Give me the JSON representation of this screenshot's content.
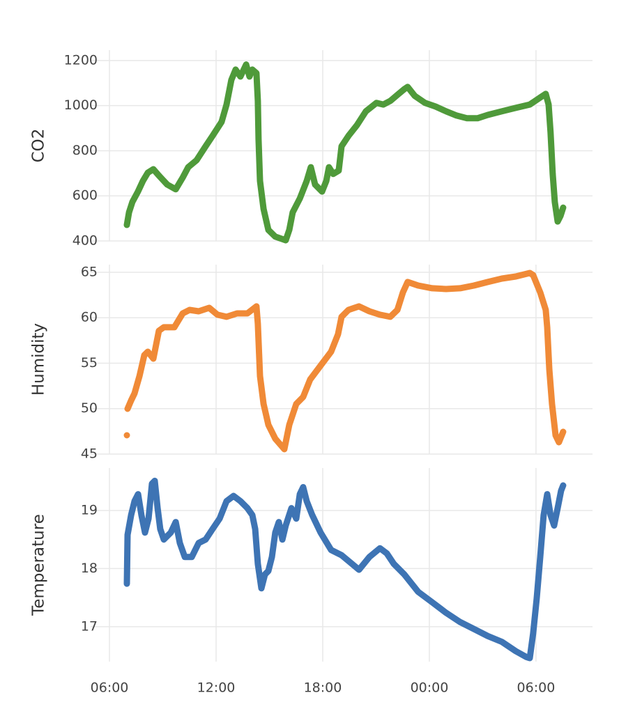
{
  "chart_data": [
    {
      "type": "line",
      "ylabel": "CO2",
      "color": "#4f9a3a",
      "xlim": [
        4.94,
        33.18
      ],
      "ylim": [
        400,
        1246
      ],
      "yticks": [
        400,
        600,
        800,
        1000,
        1200
      ],
      "grid": true,
      "x": [
        6.98,
        7.1,
        7.29,
        7.61,
        7.88,
        8.16,
        8.47,
        8.78,
        9.25,
        9.73,
        10.12,
        10.43,
        10.9,
        11.41,
        11.8,
        12.31,
        12.59,
        12.86,
        13.1,
        13.37,
        13.69,
        13.88,
        14.04,
        14.27,
        14.35,
        14.39,
        14.47,
        14.67,
        14.94,
        15.33,
        15.92,
        16.12,
        16.31,
        16.71,
        17.1,
        17.33,
        17.57,
        17.96,
        18.2,
        18.35,
        18.59,
        18.9,
        19.06,
        19.45,
        19.92,
        20.43,
        21.02,
        21.41,
        21.8,
        22.27,
        22.59,
        22.78,
        23.18,
        23.76,
        24.35,
        24.94,
        25.53,
        26.12,
        26.71,
        27.29,
        28.08,
        28.86,
        29.65,
        30.24,
        30.55,
        30.71,
        30.82,
        30.94,
        31.06,
        31.22,
        31.38,
        31.53
      ],
      "values": [
        471,
        527,
        573,
        620,
        666,
        703,
        718,
        690,
        650,
        629,
        681,
        727,
        758,
        820,
        866,
        928,
        1005,
        1114,
        1160,
        1129,
        1182,
        1129,
        1160,
        1144,
        1021,
        851,
        666,
        542,
        449,
        419,
        403,
        449,
        527,
        588,
        666,
        727,
        650,
        619,
        666,
        727,
        697,
        712,
        820,
        866,
        913,
        975,
        1012,
        1005,
        1021,
        1052,
        1073,
        1083,
        1043,
        1012,
        996,
        975,
        956,
        944,
        944,
        959,
        975,
        990,
        1005,
        1036,
        1052,
        1005,
        882,
        697,
        573,
        486,
        511,
        548
      ]
    },
    {
      "type": "line",
      "ylabel": "Humidity",
      "color": "#f08a37",
      "xlim": [
        4.94,
        33.18
      ],
      "ylim": [
        45,
        65.84
      ],
      "yticks": [
        45,
        50,
        55,
        60,
        65
      ],
      "grid": true,
      "x": [
        6.98,
        7.0,
        7.02,
        7.22,
        7.41,
        7.69,
        7.96,
        8.16,
        8.47,
        8.78,
        9.06,
        9.65,
        10.12,
        10.51,
        11.02,
        11.61,
        12.08,
        12.59,
        13.18,
        13.76,
        14.27,
        14.35,
        14.47,
        14.67,
        14.94,
        15.33,
        15.84,
        16.12,
        16.51,
        16.9,
        17.29,
        17.88,
        18.47,
        18.86,
        19.06,
        19.45,
        20.04,
        20.63,
        21.22,
        21.8,
        22.2,
        22.51,
        22.78,
        23.37,
        24.16,
        24.94,
        25.73,
        26.51,
        27.29,
        28.08,
        28.86,
        29.65,
        29.84,
        30.24,
        30.55,
        30.63,
        30.75,
        30.9,
        31.1,
        31.29,
        31.53
      ],
      "values": [
        47.07,
        null,
        49.98,
        50.9,
        51.67,
        53.58,
        55.88,
        56.26,
        55.5,
        58.56,
        58.95,
        58.95,
        60.48,
        60.86,
        60.71,
        61.09,
        60.33,
        60.1,
        60.48,
        60.48,
        61.25,
        59.33,
        53.58,
        50.52,
        48.22,
        46.69,
        45.54,
        48.22,
        50.52,
        51.28,
        53.2,
        54.73,
        56.26,
        58.18,
        60.1,
        60.86,
        61.25,
        60.71,
        60.33,
        60.1,
        60.86,
        62.78,
        63.93,
        63.54,
        63.24,
        63.16,
        63.24,
        63.54,
        63.93,
        64.31,
        64.54,
        64.92,
        64.69,
        62.78,
        60.86,
        58.95,
        54.35,
        50.52,
        47.07,
        46.3,
        47.45
      ]
    },
    {
      "type": "line",
      "ylabel": "Temperature",
      "color": "#3e74b4",
      "xlim": [
        4.94,
        33.18
      ],
      "ylim": [
        16.4,
        19.73
      ],
      "yticks": [
        17,
        18,
        19
      ],
      "grid": true,
      "xticks": [
        {
          "value": 6,
          "label": "06:00"
        },
        {
          "value": 12,
          "label": "12:00"
        },
        {
          "value": 18,
          "label": "18:00"
        },
        {
          "value": 24,
          "label": "00:00"
        },
        {
          "value": 30,
          "label": "06:00"
        }
      ],
      "x": [
        6.98,
        7.02,
        7.22,
        7.41,
        7.61,
        7.8,
        8.0,
        8.2,
        8.39,
        8.55,
        8.71,
        8.86,
        9.06,
        9.45,
        9.73,
        9.96,
        10.24,
        10.63,
        11.02,
        11.41,
        11.8,
        12.2,
        12.59,
        12.98,
        13.37,
        13.76,
        14.04,
        14.2,
        14.35,
        14.55,
        14.75,
        14.94,
        15.14,
        15.33,
        15.53,
        15.73,
        15.92,
        16.24,
        16.51,
        16.71,
        16.9,
        17.1,
        17.41,
        17.88,
        18.47,
        19.06,
        19.65,
        20.04,
        20.63,
        21.22,
        21.61,
        22.0,
        22.59,
        23.37,
        24.16,
        24.94,
        25.73,
        26.51,
        27.29,
        28.08,
        28.86,
        29.45,
        29.65,
        29.84,
        30.04,
        30.24,
        30.43,
        30.63,
        30.82,
        31.02,
        31.22,
        31.41,
        31.53
      ],
      "values": [
        17.74,
        18.58,
        18.92,
        19.16,
        19.28,
        18.92,
        18.62,
        18.86,
        19.46,
        19.51,
        19.04,
        18.68,
        18.5,
        18.62,
        18.8,
        18.44,
        18.2,
        18.2,
        18.44,
        18.5,
        18.68,
        18.86,
        19.16,
        19.25,
        19.16,
        19.04,
        18.92,
        18.68,
        18.08,
        17.66,
        17.9,
        17.96,
        18.2,
        18.62,
        18.8,
        18.5,
        18.74,
        19.04,
        18.86,
        19.28,
        19.4,
        19.16,
        18.92,
        18.62,
        18.32,
        18.23,
        18.08,
        17.98,
        18.2,
        18.35,
        18.26,
        18.08,
        17.9,
        17.6,
        17.42,
        17.24,
        17.08,
        16.96,
        16.84,
        16.74,
        16.58,
        16.48,
        16.46,
        16.88,
        17.48,
        18.2,
        18.92,
        19.28,
        18.92,
        18.74,
        19.04,
        19.34,
        19.43
      ]
    }
  ]
}
